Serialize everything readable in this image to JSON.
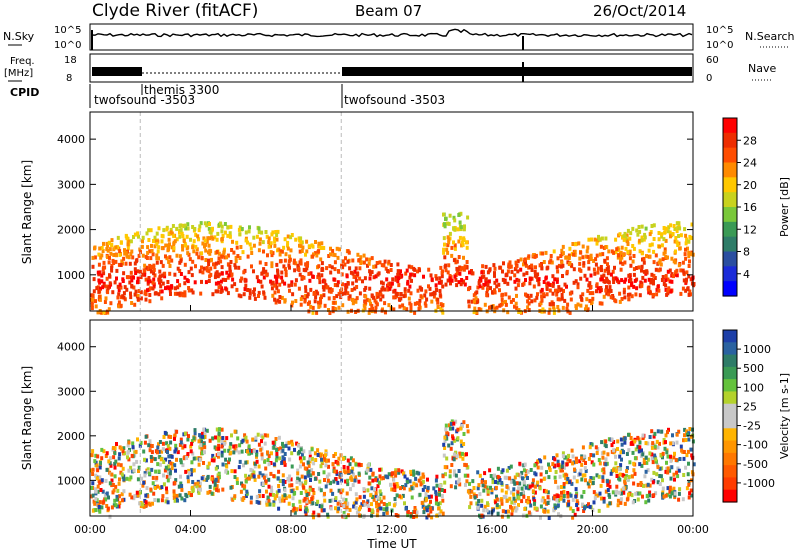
{
  "header": {
    "station": "Clyde River (fitACF)",
    "beam": "Beam 07",
    "date": "26/Oct/2014"
  },
  "top_panels": {
    "nsky_label": "N.Sky",
    "nsky_ticks": [
      "10^5",
      "10^0"
    ],
    "nsearch_label": "N.Search",
    "nsearch_ticks": [
      "10^5",
      "10^0"
    ],
    "freq_label": "Freq.",
    "freq_unit": "[MHz]",
    "freq_ticks": [
      "18",
      "8"
    ],
    "nave_label": "Nave",
    "nave_ticks": [
      "60",
      "0"
    ],
    "cpid_label": "CPID",
    "cpid_segments": [
      {
        "label": "twofsound -3503",
        "start_hour": 0
      },
      {
        "label": "themis 3300",
        "start_hour": 2
      },
      {
        "label": "twofsound -3503",
        "start_hour": 10
      }
    ]
  },
  "chart_data": [
    {
      "type": "heatmap",
      "name": "power",
      "ylabel": "Slant Range [km]",
      "xlabel": "Time UT",
      "xlim_hours": [
        0,
        24
      ],
      "ylim": [
        200,
        4600
      ],
      "yticks": [
        1000,
        2000,
        3000,
        4000
      ],
      "xticks": [
        "00:00",
        "04:00",
        "08:00",
        "12:00",
        "16:00",
        "20:00",
        "00:00"
      ],
      "colorbar": {
        "label": "Power [dB]",
        "ticks": [
          "28",
          "24",
          "20",
          "16",
          "12",
          "8",
          "4"
        ],
        "colors": [
          "#ff0000",
          "#ee2d00",
          "#ff4d00",
          "#ff8a00",
          "#ffc800",
          "#c8d21e",
          "#7ac83a",
          "#3a9a55",
          "#2e7c68",
          "#2a4ea0",
          "#1b2bd8",
          "#0000ff"
        ]
      }
    },
    {
      "type": "heatmap",
      "name": "velocity",
      "ylabel": "Slant Range [km]",
      "xlabel": "Time UT",
      "xlim_hours": [
        0,
        24
      ],
      "ylim": [
        200,
        4600
      ],
      "yticks": [
        1000,
        2000,
        3000,
        4000
      ],
      "xticks": [
        "00:00",
        "04:00",
        "08:00",
        "12:00",
        "16:00",
        "20:00",
        "00:00"
      ],
      "colorbar": {
        "label": "Velocity [m s-1]",
        "ticks": [
          "1000",
          "500",
          "100",
          "25",
          "-25",
          "-100",
          "-500",
          "-1000"
        ],
        "colors": [
          "#1d3fa8",
          "#2a62a0",
          "#2e7c68",
          "#3a9a55",
          "#64c23c",
          "#b4d22c",
          "#c8c8c8",
          "#c8c8c8",
          "#ffb400",
          "#ff9600",
          "#ff7800",
          "#ff5a00",
          "#ff3c00",
          "#ff0000"
        ]
      }
    }
  ]
}
